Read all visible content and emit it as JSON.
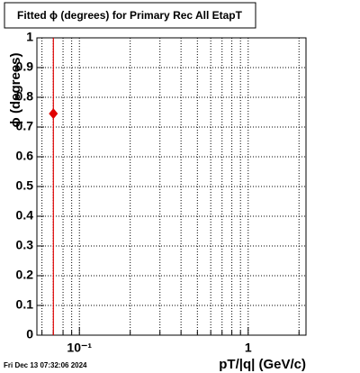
{
  "chart_data": {
    "type": "scatter",
    "title": "Fitted ϕ (degrees) for Primary Rec All EtapT",
    "x_label": "pT/|q| (GeV/c)",
    "y_label": "ϕ (degrees)",
    "footer": "Fri Dec 13 07:32:06 2024",
    "log_x": true,
    "grid": true,
    "color": "#e00000",
    "x": [
      0.0701
    ],
    "values": [
      0.745
    ],
    "yerr": [
      1
    ],
    "xlim": [
      0.056,
      2.2
    ],
    "ylim": [
      0,
      1
    ],
    "xticks": [
      {
        "value": 0.1,
        "label": "10⁻¹"
      },
      1
    ],
    "xminor_ticks": [
      0.06,
      0.07,
      0.08,
      0.09,
      0.2,
      0.3,
      0.4,
      0.5,
      0.6,
      0.7,
      0.8,
      0.9,
      2
    ],
    "yticks": [
      0,
      0.1,
      0.2,
      0.3,
      0.4,
      0.5,
      0.6,
      0.7,
      0.8,
      0.9,
      1
    ]
  }
}
